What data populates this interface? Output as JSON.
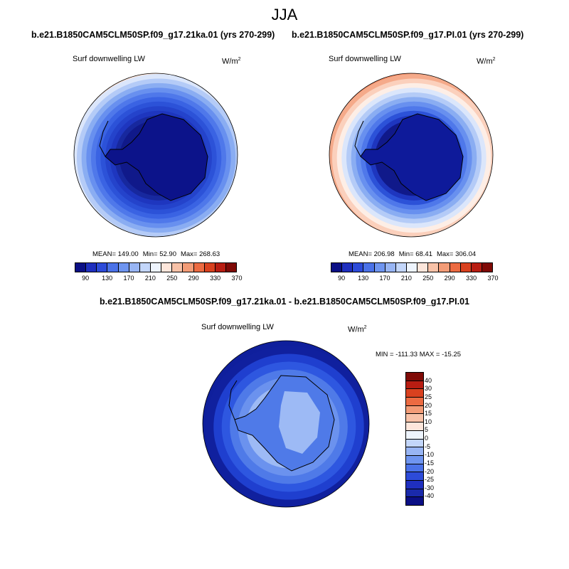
{
  "season": "JJA",
  "panels": [
    {
      "case": "b.e21.B1850CAM5CLM50SP.f09_g17.21ka.01 (yrs 270-299)",
      "variable": "Surf downwelling LW",
      "units_base": "W/m",
      "units_exp": "2",
      "stats": {
        "mean": "MEAN= 149.00",
        "min": "Min=  52.90",
        "max": "Max= 268.63"
      },
      "ring_colors": [
        "#f7c9b0",
        "#fde3d6",
        "#dbe6fb",
        "#b4cbf7",
        "#8aadf2",
        "#6890ef",
        "#4f78ea",
        "#3a63e3",
        "#2c52d8",
        "#2443cb",
        "#1e36bf",
        "#17289e",
        "#10198a"
      ]
    },
    {
      "case": "b.e21.B1850CAM5CLM50SP.f09_g17.PI.01 (yrs 270-299)",
      "variable": "Surf downwelling LW",
      "units_base": "W/m",
      "units_exp": "2",
      "stats": {
        "mean": "MEAN= 206.98",
        "min": "Min=  68.41",
        "max": "Max= 306.04"
      },
      "ring_colors": [
        "#ec6a42",
        "#f08a64",
        "#f5aa8a",
        "#fbd0bc",
        "#fdeee6",
        "#dbe6fb",
        "#b4cbf7",
        "#8aadf2",
        "#6890ef",
        "#4f78ea",
        "#2c52d8",
        "#1e36bf",
        "#10198a"
      ]
    }
  ],
  "top_colorbar": {
    "colors": [
      "#0b0f85",
      "#1f2fbf",
      "#2d4bd9",
      "#4b72e8",
      "#6f95f0",
      "#98b5f4",
      "#c3d6fa",
      "#eef4fd",
      "#fde6db",
      "#f8c2a8",
      "#f39c77",
      "#ec6b42",
      "#d9411f",
      "#b81d12",
      "#7f0a06"
    ],
    "labels": [
      "90",
      "130",
      "170",
      "210",
      "250",
      "290",
      "330",
      "370"
    ]
  },
  "diff_panel": {
    "case": "b.e21.B1850CAM5CLM50SP.f09_g17.21ka.01 - b.e21.B1850CAM5CLM50SP.f09_g17.PI.01",
    "variable": "Surf downwelling LW",
    "units_base": "W/m",
    "units_exp": "2",
    "minmax": "MIN = -111.33 MAX = -15.25",
    "ring_colors": [
      "#0f1f9c",
      "#0f1f9c",
      "#10209e",
      "#1f3fcf",
      "#2e57e0",
      "#4f7ae8",
      "#6b92ee",
      "#9dbaf5"
    ],
    "colorbar": {
      "colors": [
        "#7f0a06",
        "#b81d12",
        "#d9411f",
        "#ec6b42",
        "#f39c77",
        "#f8c2a8",
        "#fde6db",
        "#eef4fd",
        "#c3d6fa",
        "#98b5f4",
        "#6f95f0",
        "#4b72e8",
        "#2d4bd9",
        "#1f2fbf",
        "#1a2aab",
        "#0b0f85"
      ],
      "labels": [
        "40",
        "30",
        "25",
        "20",
        "15",
        "10",
        "5",
        "0",
        "-5",
        "-10",
        "-15",
        "-20",
        "-25",
        "-30",
        "-40"
      ]
    }
  }
}
